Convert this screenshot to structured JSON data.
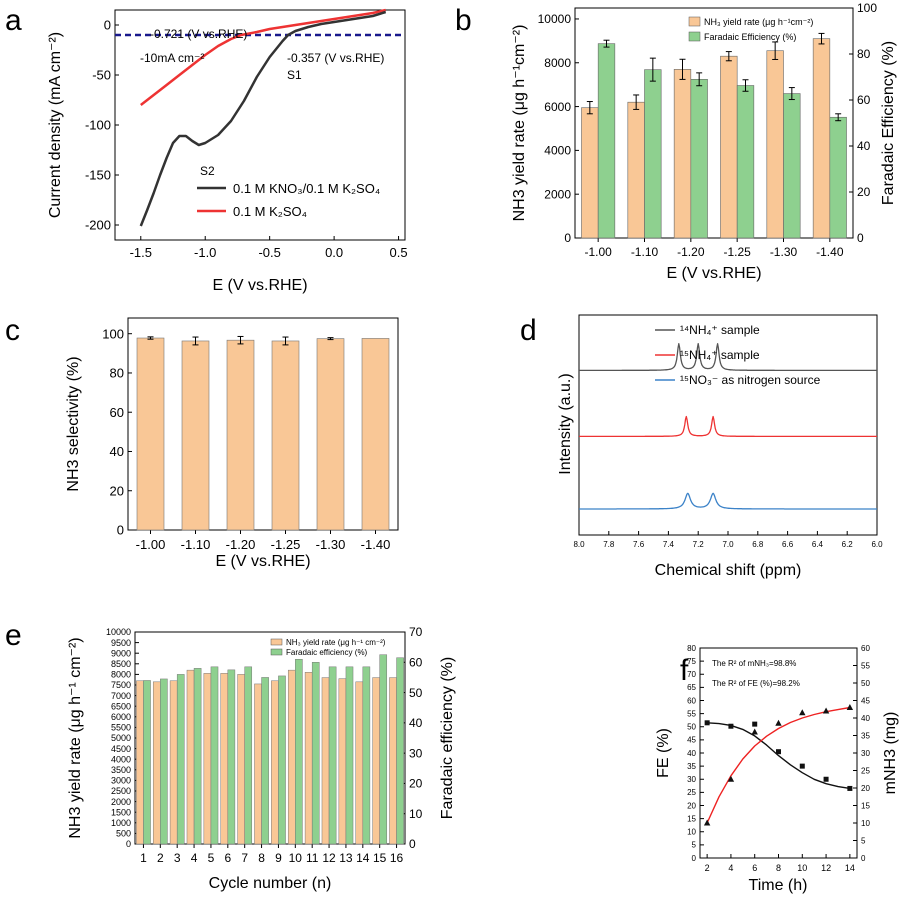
{
  "panels": {
    "a": {
      "label": "a"
    },
    "b": {
      "label": "b"
    },
    "c": {
      "label": "c"
    },
    "d": {
      "label": "d"
    },
    "e": {
      "label": "e"
    },
    "f": {
      "label": "f"
    }
  },
  "chart_data": [
    {
      "id": "a",
      "type": "line",
      "xlabel": "E (V vs.RHE)",
      "ylabel": "Current density (mA cm⁻²)",
      "xlim": [
        -1.7,
        0.55
      ],
      "ylim": [
        -215,
        15
      ],
      "xticks": [
        -1.5,
        -1.0,
        -0.5,
        0.0,
        0.5
      ],
      "xtick_labels": [
        "-1.5",
        "-1.0",
        "-0.5",
        "0.0",
        "0.5"
      ],
      "yticks": [
        0,
        -50,
        -100,
        -150,
        -200
      ],
      "ytick_labels": [
        "0",
        "-50",
        "-100",
        "-150",
        "-200"
      ],
      "legend_position": "bottom-right",
      "series": [
        {
          "name": "0.1 M KNO₃/0.1 M K₂SO₄",
          "color": "#333333",
          "x": [
            0.4,
            0.3,
            0.2,
            0.1,
            0.0,
            -0.1,
            -0.2,
            -0.3,
            -0.357,
            -0.4,
            -0.5,
            -0.6,
            -0.7,
            -0.8,
            -0.9,
            -1.0,
            -1.05,
            -1.1,
            -1.15,
            -1.2,
            -1.25,
            -1.3,
            -1.35,
            -1.4,
            -1.45,
            -1.5
          ],
          "y": [
            13,
            9,
            7,
            5,
            3,
            1,
            -2,
            -6,
            -10,
            -16,
            -32,
            -52,
            -76,
            -96,
            -110,
            -118,
            -120,
            -116,
            -111,
            -111,
            -118,
            -133,
            -150,
            -168,
            -185,
            -201
          ]
        },
        {
          "name": "0.1 M K₂SO₄",
          "color": "#ee3333",
          "x": [
            0.4,
            0.3,
            0.2,
            0.1,
            0.0,
            -0.1,
            -0.2,
            -0.3,
            -0.4,
            -0.5,
            -0.6,
            -0.721,
            -0.8,
            -0.9,
            -1.0,
            -1.1,
            -1.2,
            -1.3,
            -1.4,
            -1.5
          ],
          "y": [
            15,
            12,
            10,
            8,
            6,
            4,
            2,
            0,
            -2,
            -4,
            -7,
            -10,
            -14,
            -21,
            -30,
            -40,
            -50,
            -60,
            -70,
            -80
          ]
        }
      ],
      "reference_line": {
        "y": -10,
        "color": "#1a1a8c"
      },
      "annotations": [
        "-0.721 (V vs.RHE)",
        "-10mA cm⁻²",
        "-0.357 (V vs.RHE)",
        "S1",
        "S2"
      ]
    },
    {
      "id": "b",
      "type": "bar",
      "categories": [
        "-1.00",
        "-1.10",
        "-1.20",
        "-1.25",
        "-1.30",
        "-1.40"
      ],
      "xlabel": "E (V vs.RHE)",
      "ylabel": "NH3 yield rate (μg h⁻¹cm⁻²)",
      "ylabel_right": "Faradaic Efficiency (%)",
      "ylim": [
        0,
        10500
      ],
      "ylim_right": [
        0,
        100
      ],
      "yticks": [
        0,
        2000,
        4000,
        6000,
        8000,
        10000
      ],
      "ytick_labels": [
        "0",
        "2000",
        "4000",
        "6000",
        "8000",
        "10000"
      ],
      "yticks_right": [
        0,
        20,
        40,
        60,
        80,
        100
      ],
      "ytick_labels_right": [
        "0",
        "20",
        "40",
        "60",
        "80",
        "100"
      ],
      "legend_position": "top-center",
      "series": [
        {
          "name": "NH₃ yield rate (μg h⁻¹cm⁻²)",
          "axis": "left",
          "color": "#f9c796",
          "values": [
            5950,
            6200,
            7700,
            8300,
            8550,
            9100
          ],
          "errors": [
            280,
            330,
            460,
            210,
            400,
            240
          ]
        },
        {
          "name": "Faradaic Efficiency (%)",
          "axis": "right",
          "color": "#8ed08f",
          "values": [
            84.5,
            73.2,
            69.0,
            66.3,
            62.8,
            52.5
          ],
          "errors": [
            1.5,
            5.0,
            2.8,
            2.5,
            2.6,
            1.5
          ]
        }
      ]
    },
    {
      "id": "c",
      "type": "bar",
      "categories": [
        "-1.00",
        "-1.10",
        "-1.20",
        "-1.25",
        "-1.30",
        "-1.40"
      ],
      "xlabel": "E (V vs.RHE)",
      "ylabel": "NH3 selectivity (%)",
      "ylim": [
        0,
        108
      ],
      "yticks": [
        0,
        20,
        40,
        60,
        80,
        100
      ],
      "ytick_labels": [
        "0",
        "20",
        "40",
        "60",
        "80",
        "100"
      ],
      "series": [
        {
          "name": "",
          "color": "#f9c796",
          "values": [
            97.8,
            96.3,
            96.7,
            96.3,
            97.5,
            97.6
          ],
          "errors": [
            0.6,
            2.0,
            1.9,
            2.0,
            0.5,
            0
          ]
        }
      ]
    },
    {
      "id": "d",
      "type": "line",
      "xlabel": "Chemical shift (ppm)",
      "ylabel": "Intensity (a.u.)",
      "xlim": [
        8.0,
        6.0
      ],
      "xticks": [
        8.0,
        7.8,
        7.6,
        7.4,
        7.2,
        7.0,
        6.8,
        6.6,
        6.4,
        6.2,
        6.0
      ],
      "xtick_labels": [
        "8.0",
        "7.8",
        "7.6",
        "7.4",
        "7.2",
        "7.0",
        "6.8",
        "6.6",
        "6.4",
        "6.2",
        "6.0"
      ],
      "legend_position": "top-right",
      "series": [
        {
          "name": "¹⁴NH₄⁺ sample",
          "color": "#555555",
          "baseline": 0.68,
          "peaks": [
            7.33,
            7.2,
            7.07
          ],
          "height": 0.12,
          "width": 0.012,
          "tilt": 0.01
        },
        {
          "name": "¹⁵NH₄⁺ sample",
          "color": "#ee3333",
          "baseline": 0.38,
          "peaks": [
            7.28,
            7.1
          ],
          "height": 0.09,
          "width": 0.012,
          "tilt": 0.0
        },
        {
          "name": "¹⁵NO₃⁻ as nitrogen source",
          "color": "#3b82c8",
          "baseline": 0.05,
          "peaks": [
            7.27,
            7.1
          ],
          "height": 0.07,
          "width": 0.022,
          "tilt": 0.05
        }
      ]
    },
    {
      "id": "e",
      "type": "bar",
      "categories": [
        "1",
        "2",
        "3",
        "4",
        "5",
        "6",
        "7",
        "8",
        "9",
        "10",
        "11",
        "12",
        "13",
        "14",
        "15",
        "16"
      ],
      "xlabel": "Cycle number (n)",
      "ylabel": "NH3 yield rate (μg h⁻¹ cm⁻²)",
      "ylabel_right": "Faradaic efficiency (%)",
      "ylim": [
        0,
        10000
      ],
      "ylim_right": [
        0,
        70
      ],
      "yticks": [
        0,
        500,
        1000,
        1500,
        2000,
        2500,
        3000,
        3500,
        4000,
        4500,
        5000,
        5500,
        6000,
        6500,
        7000,
        7500,
        8000,
        8500,
        9000,
        9500,
        10000
      ],
      "ytick_labels": [
        "0",
        "500",
        "1000",
        "1500",
        "2000",
        "2500",
        "3000",
        "3500",
        "4000",
        "4500",
        "5000",
        "5500",
        "6000",
        "6500",
        "7000",
        "7500",
        "8000",
        "8500",
        "9000",
        "9500",
        "10000"
      ],
      "yticks_right": [
        0,
        10,
        20,
        30,
        40,
        50,
        60,
        70
      ],
      "ytick_labels_right": [
        "0",
        "10",
        "20",
        "30",
        "40",
        "50",
        "60",
        "70"
      ],
      "legend_position": "top-right",
      "series": [
        {
          "name": "NH₃ yield rate (μg h⁻¹ cm⁻²)",
          "axis": "left",
          "color": "#f9c796",
          "values": [
            7700,
            7650,
            7700,
            8200,
            8050,
            8050,
            8000,
            7550,
            7700,
            8200,
            8100,
            7850,
            7800,
            7650,
            7850,
            7850
          ]
        },
        {
          "name": "Faradaic efficiency (%)",
          "axis": "right",
          "color": "#8ed08f",
          "values": [
            54,
            54.5,
            56,
            58,
            58.5,
            57.5,
            58.5,
            55,
            55.5,
            61,
            60,
            58.5,
            58.5,
            58.5,
            62.5,
            61.5
          ]
        }
      ]
    },
    {
      "id": "f",
      "type": "scatter",
      "xlabel": "Time (h)",
      "ylabel": "FE (%)",
      "ylabel_right": "mNH3 (mg)",
      "xlim": [
        1.4,
        14.6
      ],
      "ylim": [
        0,
        80
      ],
      "ylim_right": [
        0,
        60
      ],
      "xticks": [
        2,
        4,
        6,
        8,
        10,
        12,
        14
      ],
      "xtick_labels": [
        "2",
        "4",
        "6",
        "8",
        "10",
        "12",
        "14"
      ],
      "yticks": [
        0,
        5,
        10,
        15,
        20,
        25,
        30,
        35,
        40,
        45,
        50,
        55,
        60,
        65,
        70,
        75,
        80
      ],
      "ytick_labels": [
        "0",
        "5",
        "10",
        "15",
        "20",
        "25",
        "30",
        "35",
        "40",
        "45",
        "50",
        "55",
        "60",
        "65",
        "70",
        "75",
        "80"
      ],
      "yticks_right": [
        0,
        5,
        10,
        15,
        20,
        25,
        30,
        35,
        40,
        45,
        50,
        55,
        60
      ],
      "ytick_labels_right": [
        "0",
        "5",
        "10",
        "15",
        "20",
        "25",
        "30",
        "35",
        "40",
        "45",
        "50",
        "55",
        "60"
      ],
      "annotations": [
        "The R² of mNH₃=98.8%",
        "The R² of FE (%)=98.2%"
      ],
      "series": [
        {
          "name": "FE",
          "axis": "left",
          "marker": "square",
          "color": "#111111",
          "fit_color": "#111111",
          "x": [
            2,
            4,
            6,
            8,
            10,
            12,
            14
          ],
          "y": [
            51.5,
            50.2,
            51,
            40.5,
            35,
            30,
            26.5
          ],
          "fit_x": [
            2,
            3,
            4,
            5,
            6,
            7,
            8,
            9,
            10,
            11,
            12,
            13,
            14
          ],
          "fit_y": [
            51.5,
            51.2,
            50.5,
            49,
            46.5,
            43,
            39,
            35.5,
            32.5,
            30,
            28.3,
            27.2,
            26.5
          ]
        },
        {
          "name": "mNH3",
          "axis": "right",
          "marker": "triangle",
          "color": "#111111",
          "fit_color": "#ee2222",
          "x": [
            2,
            4,
            6,
            8,
            10,
            12,
            14
          ],
          "y": [
            10,
            22.5,
            36,
            38.5,
            41.5,
            42,
            43
          ],
          "fit_x": [
            2,
            3,
            4,
            5,
            6,
            7,
            8,
            9,
            10,
            11,
            12,
            13,
            14
          ],
          "fit_y": [
            10,
            17.5,
            23.5,
            28.3,
            32,
            34.8,
            37,
            38.7,
            40,
            41,
            41.8,
            42.4,
            43
          ]
        }
      ]
    }
  ]
}
